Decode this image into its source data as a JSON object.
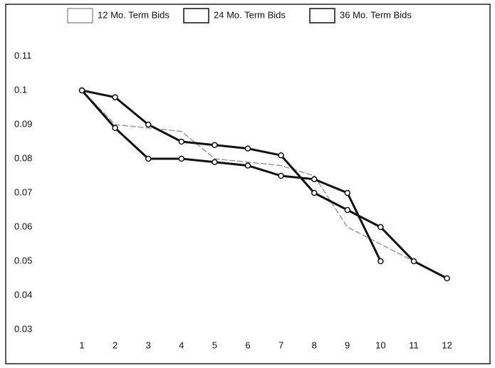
{
  "chart_data": {
    "type": "line",
    "categories": [
      "1",
      "2",
      "3",
      "4",
      "5",
      "6",
      "7",
      "8",
      "9",
      "10",
      "11",
      "12"
    ],
    "series": [
      {
        "name": "12 Mo. Term Bids",
        "color": "#999999",
        "values": [
          0.1,
          0.09,
          0.089,
          0.088,
          0.08,
          0.079,
          0.078,
          0.075,
          0.06,
          0.055,
          0.05,
          0.045
        ]
      },
      {
        "name": "24 Mo. Term Bids",
        "color": "#111111",
        "values": [
          0.1,
          0.089,
          0.08,
          0.08,
          0.079,
          0.078,
          0.075,
          0.074,
          0.07,
          0.05,
          null,
          null
        ]
      },
      {
        "name": "36 Mo. Term Bids",
        "color": "#111111",
        "values": [
          0.1,
          0.098,
          0.09,
          0.085,
          0.084,
          0.083,
          0.081,
          0.07,
          0.065,
          0.06,
          0.05,
          0.045
        ]
      }
    ],
    "ylim": [
      0.03,
      0.11
    ],
    "yticks": [
      0.03,
      0.04,
      0.05,
      0.06,
      0.07,
      0.08,
      0.09,
      0.1,
      0.11
    ],
    "legend": "top"
  }
}
